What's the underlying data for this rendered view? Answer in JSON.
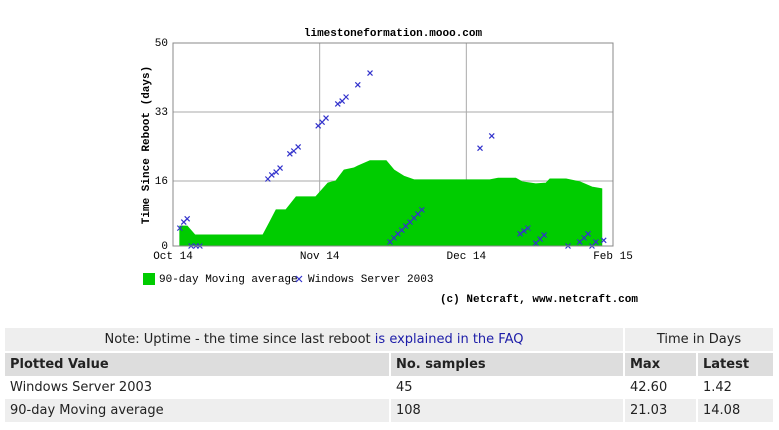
{
  "chart_data": {
    "type": "area",
    "title": "limestoneformation.mooo.com",
    "y_label": "Time Since Reboot (days)",
    "credit": "(c) Netcraft, www.netcraft.com",
    "xlim": [
      0,
      90
    ],
    "xticks": [
      {
        "value": 0,
        "label": "Oct 14"
      },
      {
        "value": 30,
        "label": "Nov 14"
      },
      {
        "value": 60,
        "label": "Dec 14"
      },
      {
        "value": 90,
        "label": "Feb 15"
      }
    ],
    "ylim": [
      0,
      50
    ],
    "yticks": [
      0,
      16,
      33,
      50
    ],
    "grid": true,
    "series": [
      {
        "name": "90-day Moving average",
        "type": "area",
        "color": "#00cc00",
        "x": [
          1.4,
          2.9,
          4.5,
          18.4,
          19.8,
          21.1,
          23.1,
          25.2,
          29.2,
          31.7,
          33.3,
          35.0,
          37.0,
          37.8,
          40.3,
          43.6,
          45.2,
          47.2,
          49.3,
          64.8,
          66.5,
          70.1,
          71.4,
          74.2,
          76.3,
          77.1,
          80.4,
          83.2,
          85.7,
          87.7
        ],
        "values": [
          4.9,
          4.9,
          2.7,
          2.7,
          5.9,
          8.9,
          8.9,
          12.1,
          12.1,
          15.5,
          16.0,
          18.7,
          19.2,
          19.7,
          21.0,
          21.0,
          18.7,
          17.2,
          16.3,
          16.3,
          16.7,
          16.7,
          15.8,
          15.3,
          15.5,
          16.5,
          16.5,
          15.8,
          14.5,
          14.1
        ]
      },
      {
        "name": "Windows Server 2003",
        "type": "scatter",
        "color": "#3333cc",
        "x": [
          1.4,
          2.2,
          2.9,
          3.7,
          4.7,
          5.5,
          19.4,
          20.2,
          21.1,
          21.9,
          23.9,
          24.7,
          25.6,
          29.7,
          30.5,
          31.3,
          33.7,
          34.6,
          35.4,
          37.8,
          40.3,
          44.4,
          45.2,
          46.0,
          46.8,
          47.6,
          48.5,
          49.3,
          50.1,
          50.9,
          62.8,
          65.2,
          71.0,
          71.8,
          72.6,
          74.2,
          75.1,
          75.9,
          80.8,
          83.2,
          84.1,
          84.9,
          85.7,
          86.5,
          88.1
        ],
        "values": [
          4.4,
          5.9,
          6.7,
          0,
          0,
          0,
          16.5,
          17.5,
          18.2,
          19.2,
          22.7,
          23.4,
          24.4,
          29.6,
          30.5,
          31.5,
          35.0,
          35.7,
          36.7,
          39.7,
          42.6,
          1.0,
          2.0,
          3.0,
          3.9,
          4.9,
          5.9,
          6.9,
          7.9,
          8.9,
          24.1,
          27.1,
          3.0,
          3.7,
          4.4,
          0.7,
          1.7,
          2.7,
          0,
          1.0,
          2.0,
          3.0,
          0,
          1.0,
          1.4
        ]
      }
    ]
  },
  "table": {
    "note": "Note: Uptime - the time since last reboot",
    "note_link": "is explained in the FAQ",
    "unit_header": "Time in Days",
    "columns": [
      "Plotted Value",
      "No. samples",
      "Max",
      "Latest"
    ],
    "rows": [
      [
        "Windows Server 2003",
        "45",
        "42.60",
        "1.42"
      ],
      [
        "90-day Moving average",
        "108",
        "21.03",
        "14.08"
      ]
    ]
  }
}
